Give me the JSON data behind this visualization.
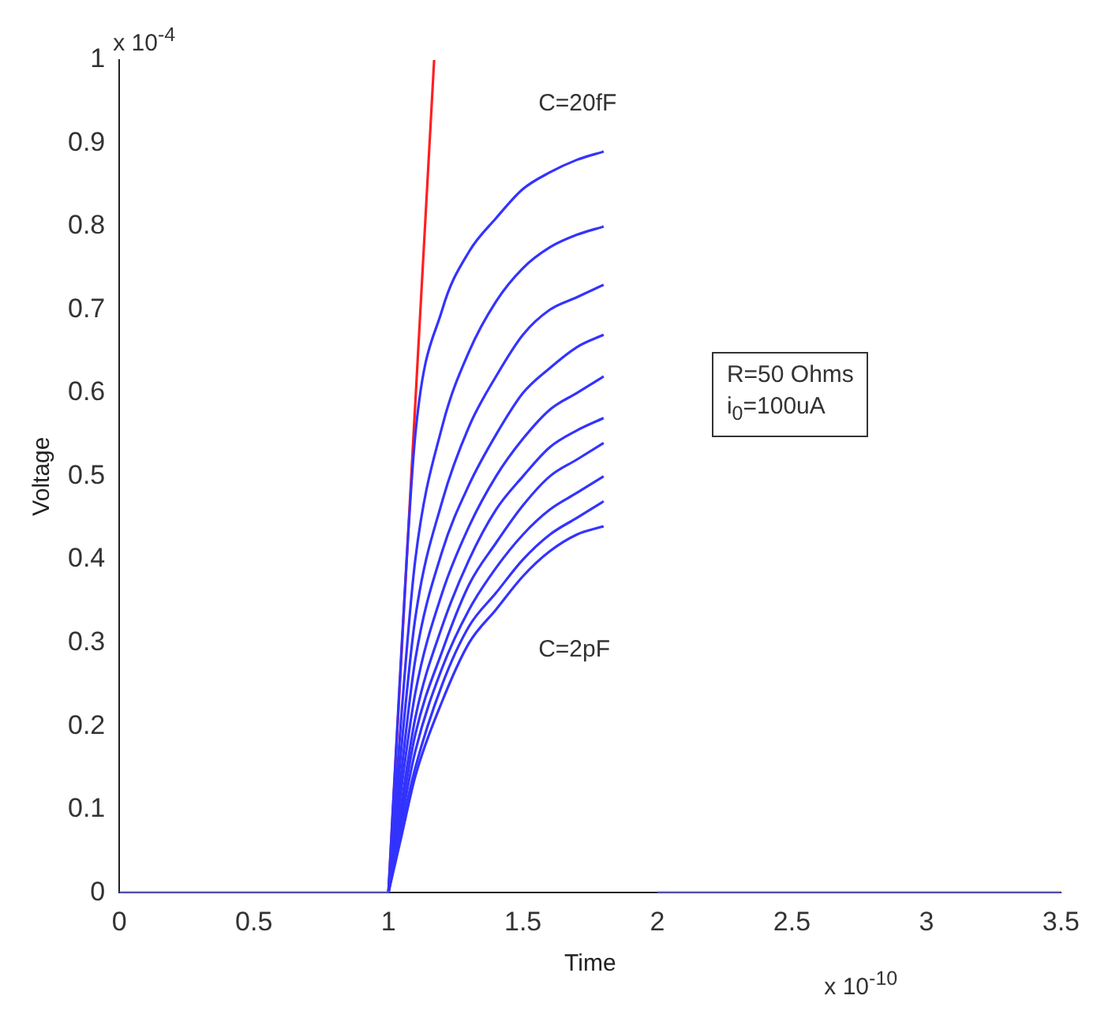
{
  "chart_data": {
    "type": "line",
    "xlabel": "Time",
    "ylabel": "Voltage",
    "xlim": [
      0,
      3.5
    ],
    "xticks": [
      0,
      0.5,
      1,
      1.5,
      2,
      2.5,
      3,
      3.5
    ],
    "ylim": [
      0,
      1
    ],
    "yticks": [
      0,
      0.1,
      0.2,
      0.3,
      0.4,
      0.5,
      0.6,
      0.7,
      0.8,
      0.9,
      1
    ],
    "grid": false,
    "legend": false,
    "marker": "none",
    "line_style": "solid",
    "x": [
      1,
      1.05,
      1.1,
      1.2,
      1.3,
      1.4,
      1.5,
      1.6,
      1.7,
      1.8
    ],
    "series": [
      {
        "color": "#6a6aff",
        "x": [
          0,
          1,
          1.5,
          2,
          3.5
        ],
        "values": [
          0,
          0,
          null,
          0,
          0
        ]
      },
      {
        "color": "#3333ff",
        "values": [
          0,
          0.3,
          0.55,
          0.7,
          0.77,
          0.81,
          0.845,
          0.865,
          0.88,
          0.89
        ]
      },
      {
        "color": "#3333ff",
        "values": [
          0,
          0.22,
          0.4,
          0.56,
          0.65,
          0.71,
          0.75,
          0.775,
          0.79,
          0.8
        ]
      },
      {
        "color": "#3333ff",
        "values": [
          0,
          0.18,
          0.33,
          0.47,
          0.56,
          0.62,
          0.67,
          0.7,
          0.715,
          0.73
        ]
      },
      {
        "color": "#3333ff",
        "values": [
          0,
          0.15,
          0.28,
          0.41,
          0.49,
          0.55,
          0.6,
          0.63,
          0.655,
          0.67
        ]
      },
      {
        "color": "#3333ff",
        "values": [
          0,
          0.13,
          0.24,
          0.36,
          0.44,
          0.5,
          0.545,
          0.58,
          0.6,
          0.62
        ]
      },
      {
        "color": "#3333ff",
        "values": [
          0,
          0.11,
          0.21,
          0.32,
          0.4,
          0.46,
          0.5,
          0.535,
          0.555,
          0.57
        ]
      },
      {
        "color": "#3333ff",
        "values": [
          0,
          0.1,
          0.19,
          0.29,
          0.37,
          0.42,
          0.465,
          0.5,
          0.52,
          0.54
        ]
      },
      {
        "color": "#3333ff",
        "values": [
          0,
          0.09,
          0.17,
          0.27,
          0.34,
          0.39,
          0.43,
          0.46,
          0.48,
          0.5
        ]
      },
      {
        "color": "#3333ff",
        "values": [
          0,
          0.08,
          0.15,
          0.25,
          0.32,
          0.36,
          0.4,
          0.43,
          0.45,
          0.47
        ]
      },
      {
        "color": "#3333ff",
        "values": [
          0,
          0.07,
          0.14,
          0.23,
          0.3,
          0.34,
          0.38,
          0.41,
          0.43,
          0.44
        ]
      },
      {
        "color": "#ff2020",
        "x": [
          1,
          1.17
        ],
        "values": [
          0,
          1
        ]
      }
    ],
    "annotations": [
      "x 10$^{-4}$",
      "x 10$^{-10}$",
      "R=50 Ohms\ni$_{0}$=100uA",
      "C=20fF",
      "C=2pF"
    ]
  }
}
